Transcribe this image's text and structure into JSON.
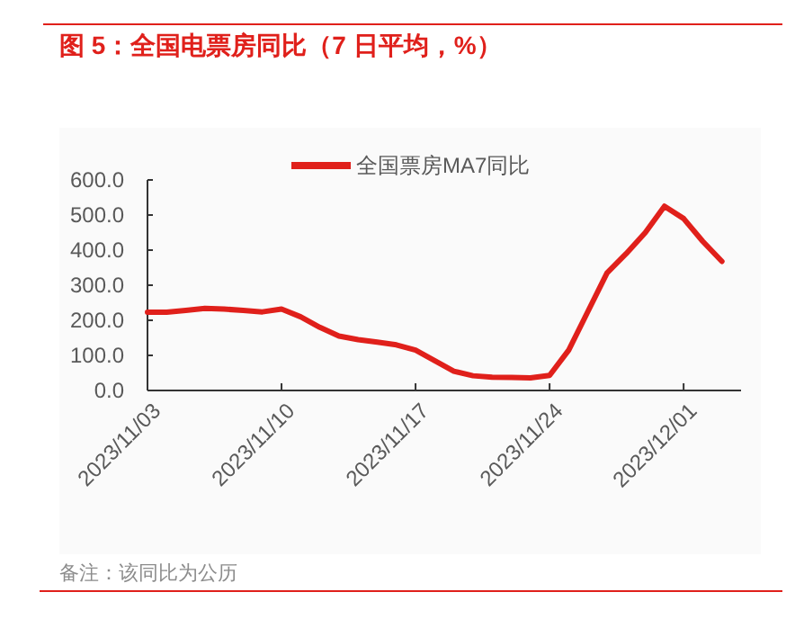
{
  "chart_data": {
    "type": "line",
    "title": "图 5：全国电票房同比（7 日平均，%）",
    "annotations": [
      "备注：该同比为公历"
    ],
    "x": [
      "2023-11-03",
      "2023-11-04",
      "2023-11-05",
      "2023-11-06",
      "2023-11-07",
      "2023-11-08",
      "2023-11-09",
      "2023-11-10",
      "2023-11-11",
      "2023-11-12",
      "2023-11-13",
      "2023-11-14",
      "2023-11-15",
      "2023-11-16",
      "2023-11-17",
      "2023-11-18",
      "2023-11-19",
      "2023-11-20",
      "2023-11-21",
      "2023-11-22",
      "2023-11-23",
      "2023-11-24",
      "2023-11-25",
      "2023-11-26",
      "2023-11-27",
      "2023-11-28",
      "2023-11-29",
      "2023-11-30",
      "2023-12-01",
      "2023-12-02",
      "2023-12-03"
    ],
    "series": [
      {
        "name": "全国票房MA7同比",
        "color": "#e0201b",
        "values": [
          223,
          223,
          228,
          234,
          232,
          228,
          224,
          232,
          210,
          180,
          155,
          145,
          138,
          130,
          115,
          85,
          55,
          42,
          38,
          37,
          36,
          43,
          115,
          225,
          335,
          390,
          450,
          525,
          490,
          425,
          368
        ]
      }
    ],
    "xlim": [
      "2023-11-03",
      "2023-12-04"
    ],
    "xticks": [
      {
        "value": "2023-11-03",
        "label": "2023/11/03"
      },
      {
        "value": "2023-11-10",
        "label": "2023/11/10"
      },
      {
        "value": "2023-11-17",
        "label": "2023/11/17"
      },
      {
        "value": "2023-11-24",
        "label": "2023/11/24"
      },
      {
        "value": "2023-12-01",
        "label": "2023/12/01"
      }
    ],
    "ylim": [
      0,
      600
    ],
    "yticks": [
      {
        "value": 0,
        "label": "0.0"
      },
      {
        "value": 100,
        "label": "100.0"
      },
      {
        "value": 200,
        "label": "200.0"
      },
      {
        "value": 300,
        "label": "300.0"
      },
      {
        "value": 400,
        "label": "400.0"
      },
      {
        "value": 500,
        "label": "500.0"
      },
      {
        "value": 600,
        "label": "600.0"
      }
    ],
    "legend": "top",
    "grid": false,
    "marker": "none",
    "line_style": "solid"
  }
}
